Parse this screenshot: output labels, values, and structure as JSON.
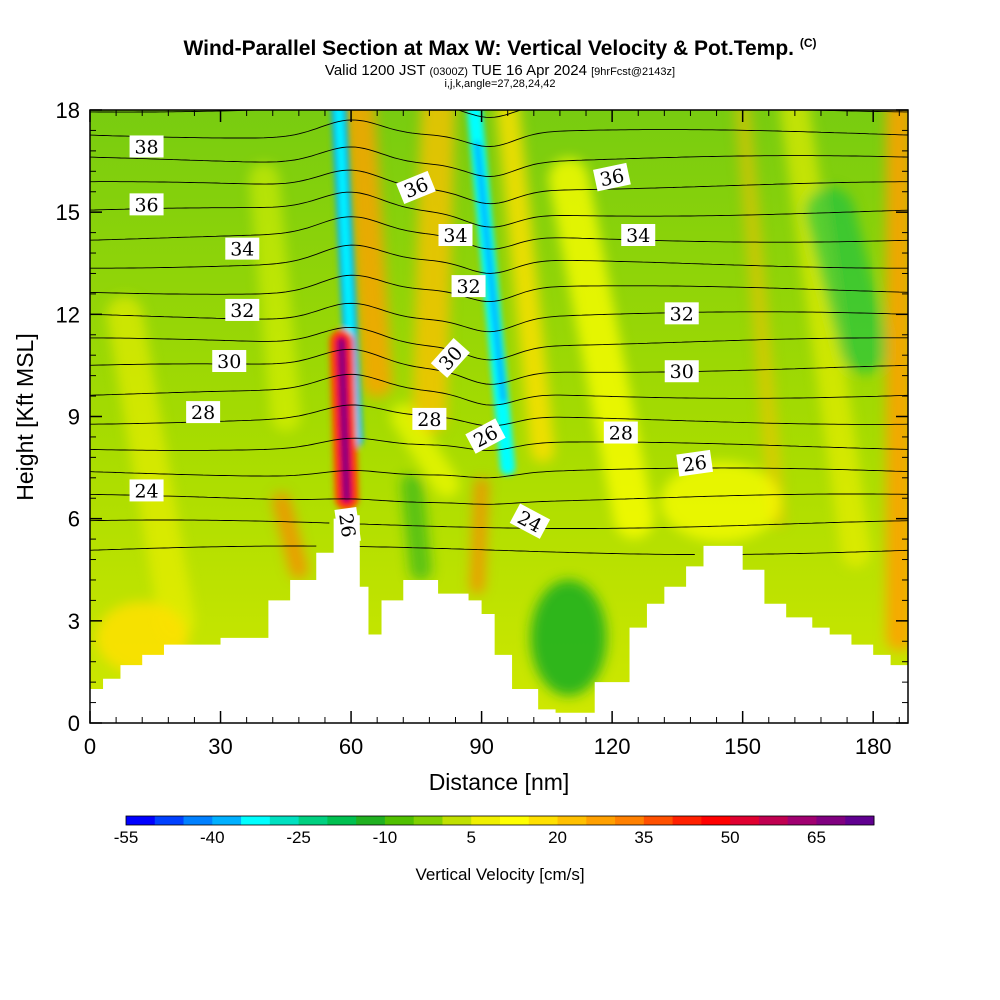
{
  "title": {
    "main": "Wind-Parallel Section at Max W: Vertical Velocity & Pot.Temp.",
    "main_mark": "(C)",
    "valid_prefix": "Valid 1200 JST",
    "valid_utc": "(0300Z)",
    "valid_date": "TUE 16 Apr 2024",
    "valid_fcst": "[9hrFcst@2143z]",
    "indices": "i,j,k,angle=27,28,24,42"
  },
  "chart_data": {
    "type": "contour",
    "xlabel": "Distance [nm]",
    "ylabel": "Height [Kft MSL]",
    "xlim": [
      0,
      188
    ],
    "ylim": [
      0,
      18
    ],
    "x_ticks": [
      "0",
      "30",
      "60",
      "90",
      "120",
      "150",
      "180"
    ],
    "y_ticks": [
      "0",
      "3",
      "6",
      "9",
      "12",
      "15",
      "18"
    ],
    "x_tick_values": [
      0,
      30,
      60,
      90,
      120,
      150,
      180
    ],
    "y_tick_values": [
      0,
      3,
      6,
      9,
      12,
      15,
      18
    ],
    "colorbar": {
      "label": "Vertical Velocity [cm/s]",
      "tick_labels": [
        "-55",
        "-40",
        "-25",
        "-10",
        "5",
        "20",
        "35",
        "50",
        "65"
      ],
      "colors": [
        "#0000ff",
        "#0040ff",
        "#0080ff",
        "#00b0ff",
        "#00ffff",
        "#00e0c0",
        "#00d080",
        "#00c050",
        "#20b020",
        "#50c000",
        "#80d000",
        "#c0e000",
        "#f0f000",
        "#ffff00",
        "#ffe000",
        "#ffc000",
        "#ffa000",
        "#ff8000",
        "#ff5000",
        "#ff2000",
        "#ff0000",
        "#e00030",
        "#c00050",
        "#a00070",
        "#800080",
        "#600090"
      ]
    },
    "theta_contour_labels": [
      {
        "text": "38",
        "x": 13,
        "y": 16.9,
        "angle": 0
      },
      {
        "text": "36",
        "x": 13,
        "y": 15.2,
        "angle": 0
      },
      {
        "text": "34",
        "x": 35,
        "y": 13.9,
        "angle": 0
      },
      {
        "text": "32",
        "x": 35,
        "y": 12.1,
        "angle": 0
      },
      {
        "text": "30",
        "x": 32,
        "y": 10.6,
        "angle": 0
      },
      {
        "text": "28",
        "x": 26,
        "y": 9.1,
        "angle": 0
      },
      {
        "text": "24",
        "x": 13,
        "y": 6.8,
        "angle": 0
      },
      {
        "text": "26",
        "x": 59,
        "y": 5.8,
        "angle": 82
      },
      {
        "text": "36",
        "x": 75,
        "y": 15.7,
        "angle": -22
      },
      {
        "text": "34",
        "x": 84,
        "y": 14.3,
        "angle": 0
      },
      {
        "text": "32",
        "x": 87,
        "y": 12.8,
        "angle": 0
      },
      {
        "text": "30",
        "x": 83,
        "y": 10.7,
        "angle": -48
      },
      {
        "text": "28",
        "x": 78,
        "y": 8.9,
        "angle": 0
      },
      {
        "text": "26",
        "x": 91,
        "y": 8.4,
        "angle": -28
      },
      {
        "text": "24",
        "x": 101,
        "y": 5.9,
        "angle": 28
      },
      {
        "text": "36",
        "x": 120,
        "y": 16.0,
        "angle": -12
      },
      {
        "text": "34",
        "x": 126,
        "y": 14.3,
        "angle": 0
      },
      {
        "text": "32",
        "x": 136,
        "y": 12.0,
        "angle": 0
      },
      {
        "text": "30",
        "x": 136,
        "y": 10.3,
        "angle": 0
      },
      {
        "text": "28",
        "x": 122,
        "y": 8.5,
        "angle": 0
      },
      {
        "text": "26",
        "x": 139,
        "y": 7.6,
        "angle": -8
      }
    ],
    "terrain": {
      "x": [
        0,
        3,
        7,
        12,
        17,
        30,
        41,
        46,
        52,
        56,
        58,
        62,
        64,
        67,
        72,
        80,
        87,
        90,
        93,
        97,
        103,
        107,
        112,
        116,
        124,
        128,
        132,
        137,
        141,
        146,
        150,
        155,
        160,
        166,
        170,
        175,
        180,
        184,
        188
      ],
      "y": [
        1.0,
        1.3,
        1.7,
        2.0,
        2.3,
        2.5,
        3.6,
        4.2,
        5.0,
        6.0,
        6.1,
        4.0,
        2.6,
        3.6,
        4.2,
        3.8,
        3.6,
        3.2,
        2.0,
        1.0,
        0.4,
        0.3,
        0.3,
        1.2,
        2.8,
        3.5,
        4.0,
        4.6,
        5.2,
        5.2,
        4.5,
        3.5,
        3.1,
        2.8,
        2.6,
        2.3,
        2.0,
        1.7,
        1.6
      ]
    },
    "w_features": [
      {
        "type": "updraft",
        "x": [
          57,
          61
        ],
        "y_range": [
          6.2,
          11.5
        ],
        "peak_cms": 65
      },
      {
        "type": "downdraft",
        "x": [
          54,
          63
        ],
        "y_range": [
          8.0,
          18.0
        ],
        "peak_cms": -40
      },
      {
        "type": "downdraft",
        "x": [
          88,
          100
        ],
        "y_range": [
          6.0,
          18.0
        ],
        "peak_cms": -30
      },
      {
        "type": "updraft",
        "x": [
          65,
          95
        ],
        "y_range": [
          8.0,
          18.0
        ],
        "peak_cms": 25
      },
      {
        "type": "downdraft",
        "x": [
          100,
          120
        ],
        "y_range": [
          1.0,
          4.5
        ],
        "peak_cms": -15
      },
      {
        "type": "updraft",
        "x": [
          184,
          188
        ],
        "y_range": [
          2.0,
          18.0
        ],
        "peak_cms": 30
      }
    ]
  }
}
